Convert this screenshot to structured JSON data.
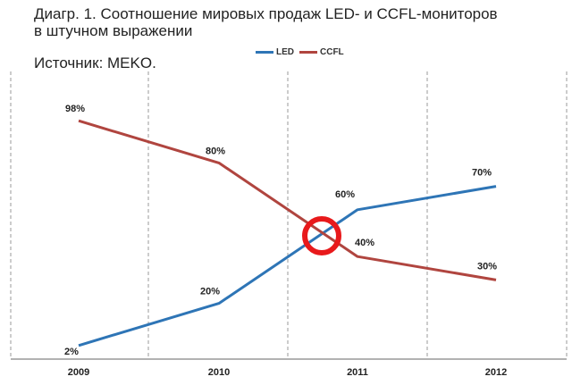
{
  "header": {
    "title_line1": "Диагр. 1. Соотношение мировых продаж LED- и CCFL-мониторов",
    "title_line2": "в штучном выражении",
    "source": "Источник: MEKO."
  },
  "colors": {
    "led": "#2e75b6",
    "ccfl": "#b0453f",
    "highlight": "#e8191b",
    "grid": "#9a9a9a"
  },
  "chart_data": {
    "type": "line",
    "title": "Диагр. 1. Соотношение мировых продаж LED- и CCFL-мониторов в штучном выражении",
    "x": [
      "2009",
      "2010",
      "2011",
      "2012"
    ],
    "tick_labels": [
      "2009",
      "2010",
      "2011",
      "2012"
    ],
    "series": [
      {
        "name": "LED",
        "values": [
          2,
          20,
          60,
          70
        ],
        "labels": [
          "2%",
          "20%",
          "60%",
          "70%"
        ]
      },
      {
        "name": "CCFL",
        "values": [
          98,
          80,
          40,
          30
        ],
        "labels": [
          "98%",
          "80%",
          "40%",
          "30%"
        ]
      }
    ],
    "ylim": [
      0,
      100
    ],
    "grid": "vertical dashed",
    "legend": "top-center",
    "annotation": "red circle at LED/CCFL crossover"
  }
}
